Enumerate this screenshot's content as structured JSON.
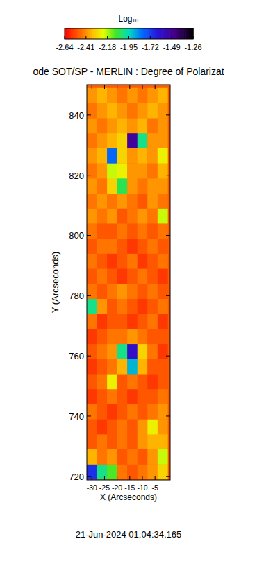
{
  "chart_data": {
    "type": "heatmap",
    "title": "ode SOT/SP - MERLIN : Degree of Polarizat",
    "x_label": "X (Arcseconds)",
    "y_label": "Y (Arcseconds)",
    "date": "21-Jun-2024 01:04:34.165",
    "xlim": [
      -32,
      1
    ],
    "ylim": [
      718.8,
      850.1
    ],
    "xticks": [
      -30,
      -25,
      -20,
      -15,
      -10,
      -5
    ],
    "yticks": [
      720,
      740,
      760,
      780,
      800,
      820,
      840
    ],
    "x": [
      -30,
      -26,
      -22,
      -18,
      -14,
      -10,
      -6,
      -2
    ],
    "y": [
      721.5,
      726.5,
      731.5,
      736.5,
      741.5,
      746.5,
      751.5,
      756.5,
      761.5,
      766.5,
      771.5,
      776.5,
      781.5,
      786.5,
      791.5,
      796.5,
      801.5,
      806.5,
      811.5,
      816.5,
      821.5,
      826.5,
      831.5,
      836.5,
      841.5,
      846.5
    ],
    "cells": [
      [
        -1.7,
        -2.0,
        -2.1,
        -2.45,
        -2.5,
        -2.45,
        -2.4,
        -2.3
      ],
      [
        -2.35,
        -2.45,
        -2.4,
        -2.5,
        -2.45,
        -2.5,
        -2.4,
        -2.2
      ],
      [
        -2.5,
        -2.45,
        -2.5,
        -2.45,
        -2.5,
        -2.4,
        -2.35,
        -2.35
      ],
      [
        -2.5,
        -2.55,
        -2.5,
        -2.45,
        -2.5,
        -2.4,
        -2.25,
        -2.4
      ],
      [
        -2.45,
        -2.5,
        -2.55,
        -2.5,
        -2.45,
        -2.5,
        -2.45,
        -2.4
      ],
      [
        -2.55,
        -2.5,
        -2.45,
        -2.5,
        -2.55,
        -2.5,
        -2.5,
        -2.45
      ],
      [
        -2.5,
        -2.45,
        -2.25,
        -2.5,
        -2.45,
        -2.5,
        -2.55,
        -2.5
      ],
      [
        -2.55,
        -2.5,
        -2.45,
        -2.35,
        -1.9,
        -2.35,
        -2.5,
        -2.5
      ],
      [
        -2.5,
        -2.45,
        -2.4,
        -2.0,
        -1.6,
        -2.3,
        -2.45,
        -2.55
      ],
      [
        -2.55,
        -2.5,
        -2.45,
        -2.45,
        -2.4,
        -2.45,
        -2.5,
        -2.5
      ],
      [
        -2.45,
        -2.55,
        -2.5,
        -2.5,
        -2.55,
        -2.5,
        -2.45,
        -2.55
      ],
      [
        -2.0,
        -2.4,
        -2.5,
        -2.45,
        -2.5,
        -2.55,
        -2.5,
        -2.45
      ],
      [
        -2.45,
        -2.5,
        -2.45,
        -2.4,
        -2.45,
        -2.5,
        -2.45,
        -2.5
      ],
      [
        -2.5,
        -2.45,
        -2.5,
        -2.55,
        -2.5,
        -2.45,
        -2.5,
        -2.55
      ],
      [
        -2.45,
        -2.5,
        -2.55,
        -2.5,
        -2.45,
        -2.55,
        -2.5,
        -2.45
      ],
      [
        -2.5,
        -2.45,
        -2.45,
        -2.5,
        -2.55,
        -2.5,
        -2.45,
        -2.5
      ],
      [
        -2.45,
        -2.5,
        -2.5,
        -2.45,
        -2.5,
        -2.45,
        -2.5,
        -2.45
      ],
      [
        -2.4,
        -2.45,
        -2.4,
        -2.5,
        -2.45,
        -2.4,
        -2.45,
        -2.2
      ],
      [
        -2.45,
        -2.4,
        -2.45,
        -2.4,
        -2.45,
        -2.5,
        -2.4,
        -2.45
      ],
      [
        -2.4,
        -2.45,
        -2.3,
        -2.05,
        -2.4,
        -2.45,
        -2.4,
        -2.4
      ],
      [
        -2.45,
        -2.4,
        -2.2,
        -2.25,
        -2.4,
        -2.4,
        -2.45,
        -2.35
      ],
      [
        -2.4,
        -2.35,
        -1.8,
        -2.3,
        -2.4,
        -2.35,
        -2.4,
        -2.25
      ],
      [
        -2.45,
        -2.4,
        -2.35,
        -2.3,
        -1.5,
        -2.0,
        -2.4,
        -2.4
      ],
      [
        -2.4,
        -2.45,
        -2.4,
        -2.35,
        -2.4,
        -2.35,
        -2.45,
        -2.4
      ],
      [
        -2.45,
        -2.4,
        -2.35,
        -2.4,
        -2.45,
        -2.4,
        -2.35,
        -2.4
      ],
      [
        -2.4,
        -2.35,
        -2.4,
        -2.45,
        -2.4,
        -2.45,
        -2.4,
        -2.35
      ]
    ],
    "colorbar": {
      "label": "Log₁₀",
      "range": [
        -2.64,
        -1.26
      ],
      "ticks": [
        -2.64,
        -2.41,
        -2.18,
        -1.95,
        -1.72,
        -1.49,
        -1.26
      ]
    }
  }
}
